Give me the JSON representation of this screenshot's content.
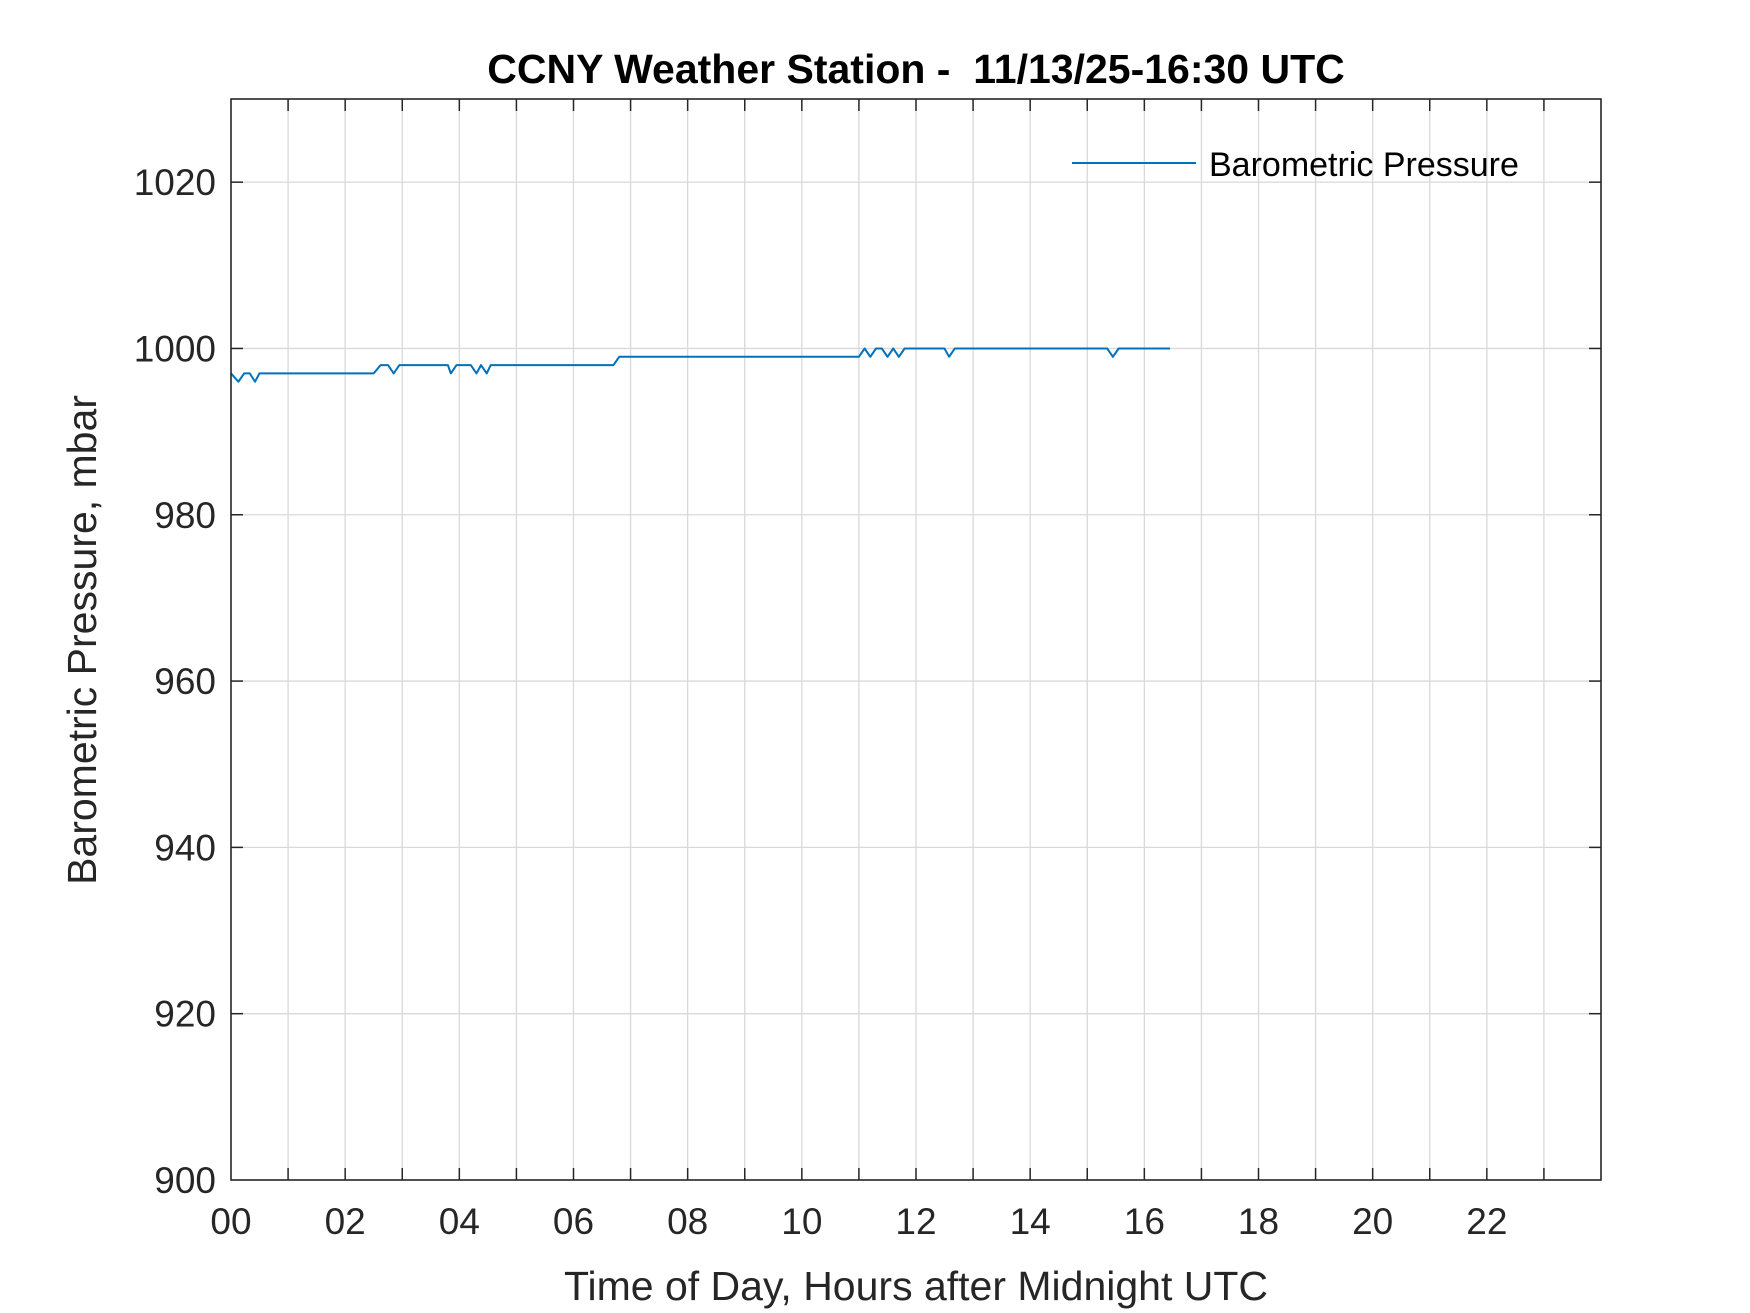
{
  "chart_data": {
    "type": "line",
    "title": "CCNY Weather Station -  11/13/25-16:30 UTC",
    "xlabel": "Time of Day, Hours after Midnight UTC",
    "ylabel": "Barometric Pressure, mbar",
    "xlim": [
      0,
      24
    ],
    "ylim": [
      900,
      1030
    ],
    "xticks": [
      0,
      2,
      4,
      6,
      8,
      10,
      12,
      14,
      16,
      18,
      20,
      22
    ],
    "xtick_labels": [
      "00",
      "02",
      "04",
      "06",
      "08",
      "10",
      "12",
      "14",
      "16",
      "18",
      "20",
      "22"
    ],
    "yticks": [
      900,
      920,
      940,
      960,
      980,
      1000,
      1020
    ],
    "ytick_labels": [
      "900",
      "920",
      "940",
      "960",
      "980",
      "1000",
      "1020"
    ],
    "grid": true,
    "legend_position": "top-right",
    "series": [
      {
        "name": "Barometric Pressure",
        "color": "#0072BD",
        "x": [
          0.0,
          0.13,
          0.23,
          0.33,
          0.42,
          0.5,
          0.6,
          2.5,
          2.62,
          2.75,
          2.85,
          2.95,
          3.8,
          3.85,
          3.95,
          4.2,
          4.3,
          4.38,
          4.48,
          4.55,
          6.7,
          6.8,
          11.0,
          11.1,
          11.2,
          11.3,
          11.4,
          11.5,
          11.6,
          11.7,
          11.8,
          12.5,
          12.58,
          12.68,
          15.35,
          15.45,
          15.55,
          16.45
        ],
        "y": [
          997,
          996,
          997,
          997,
          996,
          997,
          997,
          997,
          998,
          998,
          997,
          998,
          998,
          997,
          998,
          998,
          997,
          998,
          997,
          998,
          998,
          999,
          999,
          1000,
          999,
          1000,
          1000,
          999,
          1000,
          999,
          1000,
          1000,
          999,
          1000,
          1000,
          999,
          1000,
          1000
        ]
      }
    ]
  }
}
